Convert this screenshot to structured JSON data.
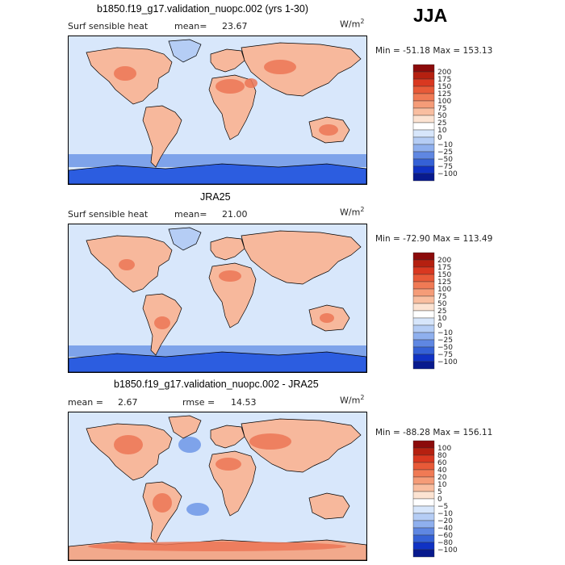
{
  "season": "JJA",
  "colors": {
    "ocean": "#d8e7fb",
    "land_warm": "#f7b89c",
    "land_hot": "#ec7656",
    "antarctic": "#2c5de0",
    "coast": "#000000"
  },
  "panels": [
    {
      "id": "model",
      "title": "b1850.f19_g17.validation_nuopc.002 (yrs 1-30)",
      "variable": "Surf sensible heat",
      "stat_label": "mean=",
      "stat_value": "23.67",
      "units": "W/m",
      "units_exp": "2",
      "min_label": "Min =",
      "min_value": "-51.18",
      "max_label": "Max =",
      "max_value": "153.13",
      "colorbar_labels": [
        "200",
        "175",
        "150",
        "125",
        "100",
        "75",
        "50",
        "25",
        "10",
        "0",
        "−10",
        "−25",
        "−50",
        "−75",
        "−100"
      ],
      "colorbar_colors": [
        "#8b0a0a",
        "#b52010",
        "#d93820",
        "#e85a38",
        "#f07a55",
        "#f59c78",
        "#f9bea0",
        "#fce3d2",
        "#ffffff",
        "#d7e6fb",
        "#b5cdf5",
        "#8fb0ee",
        "#5f87e2",
        "#3561d6",
        "#1032c4",
        "#081a8e"
      ]
    },
    {
      "id": "obs",
      "title": "JRA25",
      "variable": "Surf sensible heat",
      "stat_label": "mean=",
      "stat_value": "21.00",
      "units": "W/m",
      "units_exp": "2",
      "min_label": "Min =",
      "min_value": "-72.90",
      "max_label": "Max =",
      "max_value": "113.49",
      "colorbar_labels": [
        "200",
        "175",
        "150",
        "125",
        "100",
        "75",
        "50",
        "25",
        "10",
        "0",
        "−10",
        "−25",
        "−50",
        "−75",
        "−100"
      ],
      "colorbar_colors": [
        "#8b0a0a",
        "#b52010",
        "#d93820",
        "#e85a38",
        "#f07a55",
        "#f59c78",
        "#f9bea0",
        "#fce3d2",
        "#ffffff",
        "#d7e6fb",
        "#b5cdf5",
        "#8fb0ee",
        "#5f87e2",
        "#3561d6",
        "#1032c4",
        "#081a8e"
      ]
    },
    {
      "id": "diff",
      "title": "b1850.f19_g17.validation_nuopc.002 - JRA25",
      "variable": "mean =",
      "stat_label": "rmse =",
      "stat_value": "14.53",
      "mean_value": "2.67",
      "units": "W/m",
      "units_exp": "2",
      "min_label": "Min =",
      "min_value": "-88.28",
      "max_label": "Max =",
      "max_value": "156.11",
      "colorbar_labels": [
        "100",
        "80",
        "60",
        "40",
        "20",
        "10",
        "5",
        "0",
        "−5",
        "−10",
        "−20",
        "−40",
        "−60",
        "−80",
        "−100"
      ],
      "colorbar_colors": [
        "#8b0a0a",
        "#b52010",
        "#d93820",
        "#e85a38",
        "#f07a55",
        "#f59c78",
        "#f9bea0",
        "#fce3d2",
        "#ffffff",
        "#d7e6fb",
        "#b5cdf5",
        "#8fb0ee",
        "#5f87e2",
        "#3561d6",
        "#1032c4",
        "#081a8e"
      ]
    }
  ],
  "chart_data": [
    {
      "type": "heatmap",
      "title": "b1850.f19_g17.validation_nuopc.002 (yrs 1-30)",
      "subtitle": "Surf sensible heat",
      "mean": 23.67,
      "min": -51.18,
      "max": 153.13,
      "units": "W/m2",
      "levels": [
        -100,
        -75,
        -50,
        -25,
        -10,
        0,
        10,
        25,
        50,
        75,
        100,
        125,
        150,
        175,
        200
      ]
    },
    {
      "type": "heatmap",
      "title": "JRA25",
      "subtitle": "Surf sensible heat",
      "mean": 21.0,
      "min": -72.9,
      "max": 113.49,
      "units": "W/m2",
      "levels": [
        -100,
        -75,
        -50,
        -25,
        -10,
        0,
        10,
        25,
        50,
        75,
        100,
        125,
        150,
        175,
        200
      ]
    },
    {
      "type": "heatmap",
      "title": "b1850.f19_g17.validation_nuopc.002 - JRA25",
      "mean": 2.67,
      "rmse": 14.53,
      "min": -88.28,
      "max": 156.11,
      "units": "W/m2",
      "levels": [
        -100,
        -80,
        -60,
        -40,
        -20,
        -10,
        -5,
        0,
        5,
        10,
        20,
        40,
        60,
        80,
        100
      ]
    }
  ]
}
